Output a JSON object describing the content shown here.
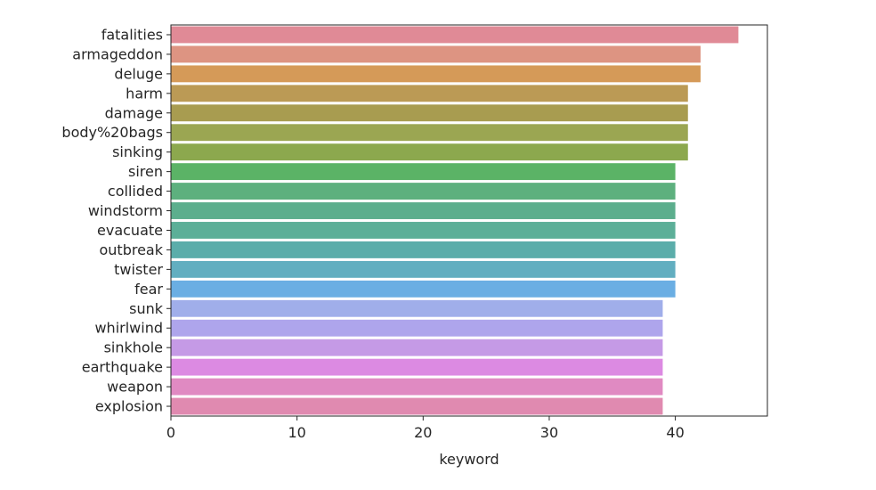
{
  "chart_data": {
    "type": "bar",
    "orientation": "horizontal",
    "title": "",
    "xlabel": "keyword",
    "ylabel": "",
    "xlim": [
      0,
      47.3
    ],
    "xticks": [
      0,
      10,
      20,
      30,
      40
    ],
    "grid": false,
    "categories": [
      "fatalities",
      "armageddon",
      "deluge",
      "harm",
      "damage",
      "body%20bags",
      "sinking",
      "siren",
      "collided",
      "windstorm",
      "evacuate",
      "outbreak",
      "twister",
      "fear",
      "sunk",
      "whirlwind",
      "sinkhole",
      "earthquake",
      "weapon",
      "explosion"
    ],
    "values": [
      45,
      42,
      42,
      41,
      41,
      41,
      41,
      40,
      40,
      40,
      40,
      40,
      40,
      40,
      39,
      39,
      39,
      39,
      39,
      39
    ],
    "colors": [
      "#e08a96",
      "#dd9482",
      "#d59a58",
      "#bb9a55",
      "#a89c50",
      "#9ba652",
      "#8ca84e",
      "#5bb366",
      "#5db07e",
      "#5cae8d",
      "#5caf98",
      "#5badaa",
      "#62aec0",
      "#6aaee3",
      "#a0aeea",
      "#aea5ec",
      "#c59ae6",
      "#dc8ae2",
      "#e08ac2",
      "#e08ab0"
    ]
  }
}
